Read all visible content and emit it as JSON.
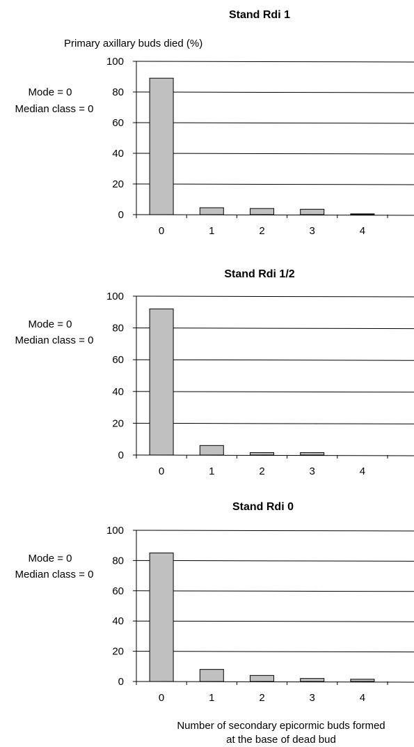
{
  "ylabel": "Primary axillary buds died (%)",
  "xlabel_line1": "Number of secondary epicormic buds formed",
  "xlabel_line2": "at the base of dead bud",
  "colors": {
    "bar_fill": "#c0c0c0",
    "bar_stroke": "#000000",
    "grid": "#000000",
    "axis": "#000000"
  },
  "chart_data": [
    {
      "type": "bar",
      "title": "Stand Rdi 1",
      "categories": [
        "0",
        "1",
        "2",
        "3",
        "4"
      ],
      "values": [
        89,
        4.5,
        4,
        3.5,
        0.5
      ],
      "ylim": [
        0,
        100
      ],
      "yticks": [
        "0",
        "20",
        "40",
        "60",
        "80",
        "100"
      ],
      "grid": true,
      "mode_text": "Mode = 0",
      "median_text": "Median class = 0"
    },
    {
      "type": "bar",
      "title": "Stand Rdi 1/2",
      "categories": [
        "0",
        "1",
        "2",
        "3",
        "4"
      ],
      "values": [
        92,
        6,
        1.5,
        1.5,
        0
      ],
      "ylim": [
        0,
        100
      ],
      "yticks": [
        "0",
        "20",
        "40",
        "60",
        "80",
        "100"
      ],
      "grid": true,
      "mode_text": "Mode = 0",
      "median_text": "Median class = 0"
    },
    {
      "type": "bar",
      "title": "Stand Rdi 0",
      "categories": [
        "0",
        "1",
        "2",
        "3",
        "4"
      ],
      "values": [
        85,
        8,
        4,
        2,
        1.5
      ],
      "ylim": [
        0,
        100
      ],
      "yticks": [
        "0",
        "20",
        "40",
        "60",
        "80",
        "100"
      ],
      "grid": true,
      "mode_text": "Mode = 0",
      "median_text": "Median class = 0"
    }
  ]
}
